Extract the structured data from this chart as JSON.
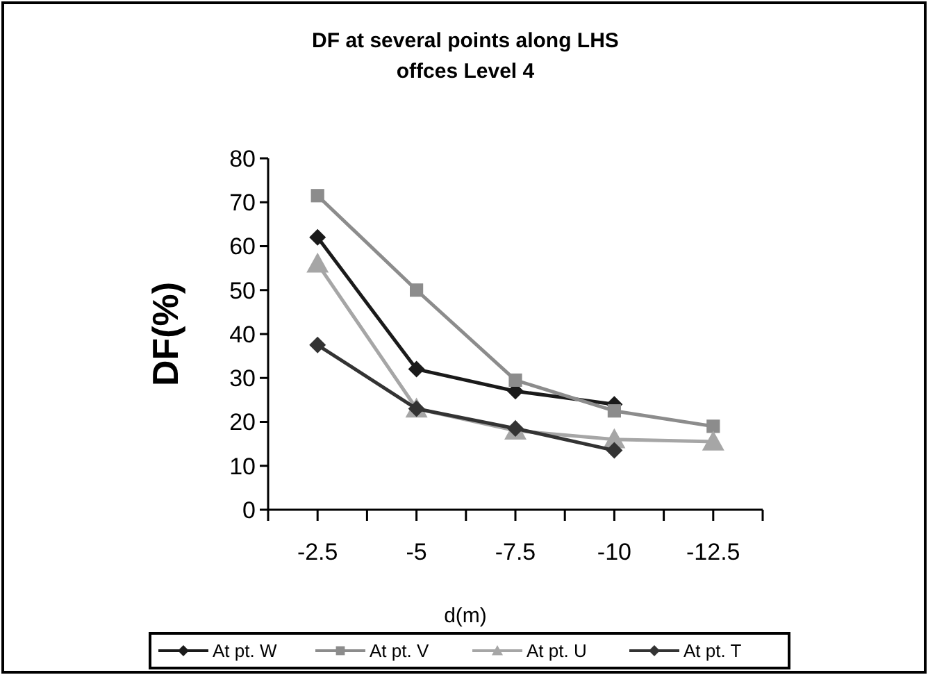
{
  "chart_data": {
    "type": "line",
    "title": "DF at several points along LHS",
    "subtitle": "offces Level 4",
    "xlabel": "d(m)",
    "ylabel": "DF(%)",
    "categories": [
      "-2.5",
      "-5",
      "-7.5",
      "-10",
      "-12.5"
    ],
    "series": [
      {
        "name": "At pt. W",
        "color": "#1a1a1a",
        "marker": "diamond",
        "values": [
          62,
          32,
          27,
          24,
          null
        ]
      },
      {
        "name": "At pt. V",
        "color": "#8c8c8c",
        "marker": "square",
        "values": [
          71.5,
          50,
          29.5,
          22.5,
          19
        ]
      },
      {
        "name": "At pt. U",
        "color": "#a6a6a6",
        "marker": "triangle",
        "values": [
          56,
          23,
          18,
          16,
          15.5
        ]
      },
      {
        "name": "At pt. T",
        "color": "#333333",
        "marker": "diamond",
        "values": [
          37.5,
          23,
          18.5,
          13.5,
          null
        ]
      }
    ],
    "ylim": [
      0,
      80
    ],
    "yticks": [
      0,
      10,
      20,
      30,
      40,
      50,
      60,
      70,
      80
    ],
    "grid": false,
    "legend": "bottom"
  }
}
